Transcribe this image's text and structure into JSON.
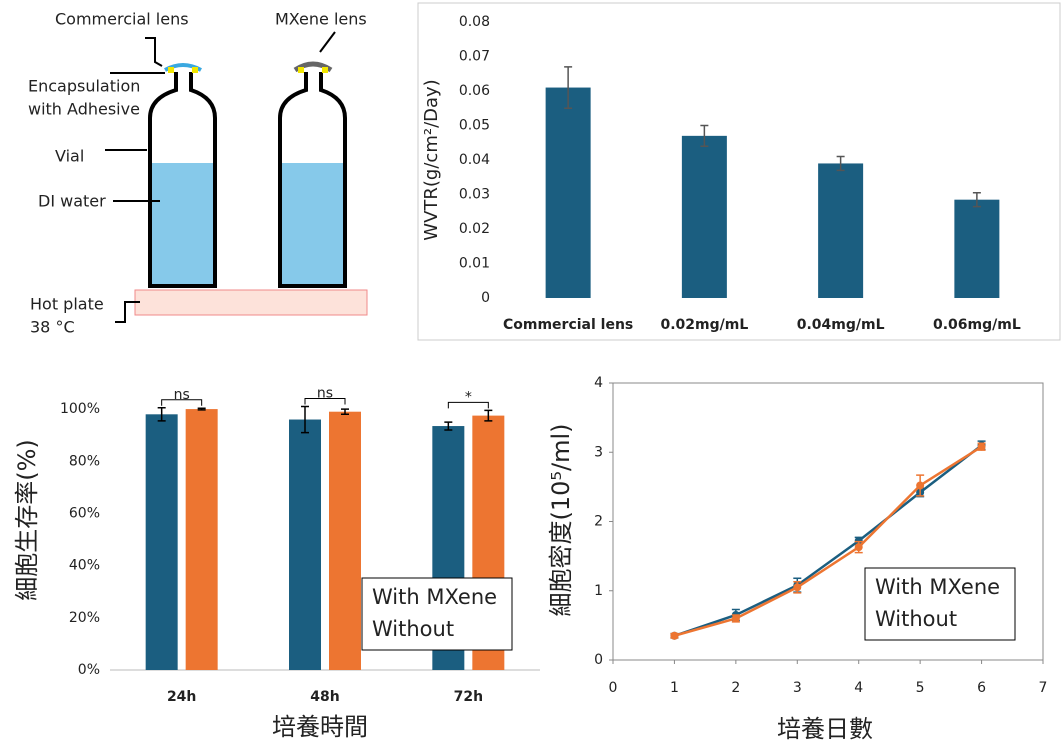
{
  "diagram": {
    "commercial_lens": "Commercial lens",
    "mxene_lens": "MXene lens",
    "encapsulation": [
      "Encapsulation",
      "with Adhesive"
    ],
    "vial": "Vial",
    "di_water": "DI water",
    "hot_plate": [
      "Hot plate",
      "38 °C"
    ]
  },
  "chart_data": [
    {
      "type": "bar",
      "y_label": "WVTR(g/cm²/Day)",
      "categories": [
        "Commercial lens",
        "0.02mg/mL",
        "0.04mg/mL",
        "0.06mg/mL"
      ],
      "values": [
        0.061,
        0.047,
        0.039,
        0.0285
      ],
      "errors": [
        0.006,
        0.003,
        0.002,
        0.002
      ],
      "color": "#1b5e80",
      "ylim": [
        0,
        0.08
      ],
      "yticks": [
        0,
        0.01,
        0.02,
        0.03,
        0.04,
        0.05,
        0.06,
        0.07,
        0.08
      ]
    },
    {
      "type": "bar",
      "x_label": "培養時間",
      "y_label": "細胞生存率(%)",
      "categories": [
        "24h",
        "48h",
        "72h"
      ],
      "series": [
        {
          "name": "With MXene",
          "color": "#1b5e80",
          "values": [
            98,
            96,
            93.5
          ],
          "errors": [
            2.5,
            5,
            1.5
          ]
        },
        {
          "name": "Without",
          "color": "#ed7531",
          "values": [
            100,
            99,
            97.5
          ],
          "errors": [
            0.3,
            1,
            2
          ]
        }
      ],
      "annotations": [
        "ns",
        "ns",
        "*"
      ],
      "ylim": [
        0,
        110
      ],
      "yticks": [
        {
          "value": 0,
          "label": "0%"
        },
        {
          "value": 20,
          "label": "20%"
        },
        {
          "value": 40,
          "label": "40%"
        },
        {
          "value": 60,
          "label": "60%"
        },
        {
          "value": 80,
          "label": "80%"
        },
        {
          "value": 100,
          "label": "100%"
        }
      ],
      "legend": "lower right"
    },
    {
      "type": "line",
      "x_label": "培養日數",
      "y_label": "細胞密度(10⁵/ml)",
      "x": [
        1,
        2,
        3,
        4,
        5,
        6
      ],
      "series": [
        {
          "name": "With MXene",
          "color": "#1b5e80",
          "values": [
            0.35,
            0.65,
            1.08,
            1.72,
            2.42,
            3.1
          ],
          "errors": [
            0.03,
            0.08,
            0.1,
            0.05,
            0.06,
            0.06
          ]
        },
        {
          "name": "Without",
          "color": "#ed7531",
          "values": [
            0.35,
            0.6,
            1.05,
            1.63,
            2.52,
            3.08
          ],
          "errors": [
            0.03,
            0.05,
            0.08,
            0.08,
            0.15,
            0.05
          ]
        }
      ],
      "xlim": [
        0,
        7
      ],
      "xticks": [
        0,
        1,
        2,
        3,
        4,
        5,
        6,
        7
      ],
      "ylim": [
        0,
        4
      ],
      "yticks": [
        0,
        1,
        2,
        3,
        4
      ],
      "legend": "lower right"
    }
  ]
}
